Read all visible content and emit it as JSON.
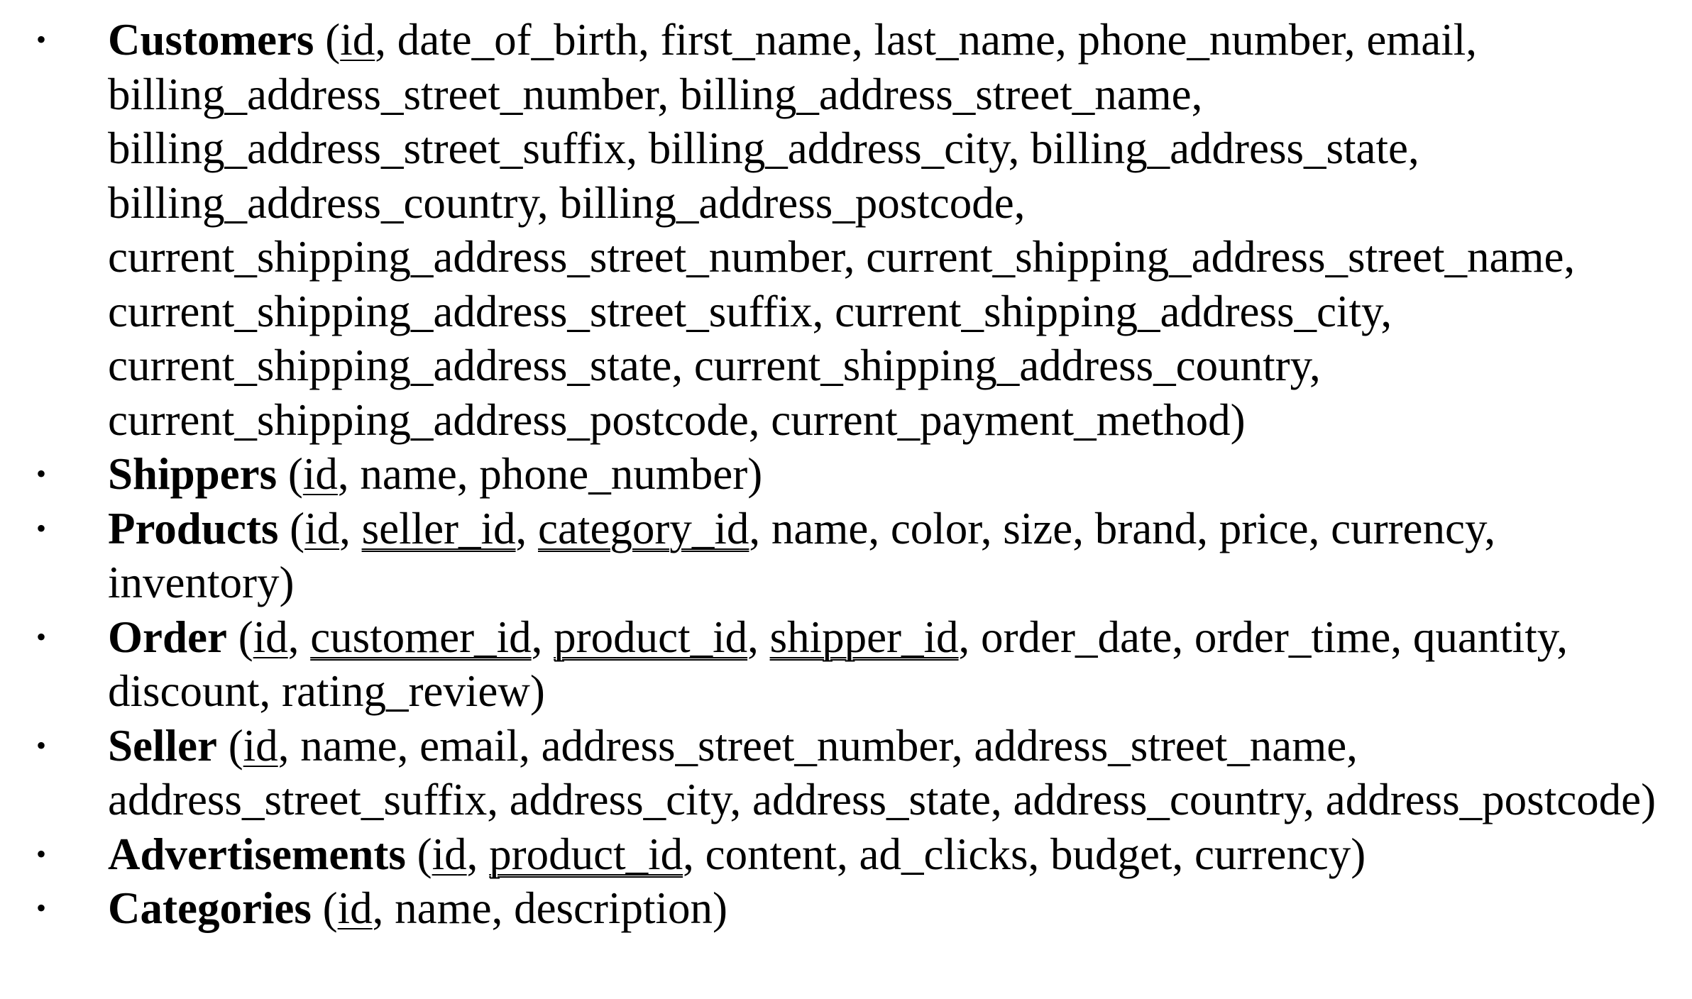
{
  "bullet": "•",
  "tables": [
    {
      "name": "Customers",
      "fields": [
        {
          "label": "id",
          "key": "pk"
        },
        {
          "label": "date_of_birth",
          "key": ""
        },
        {
          "label": "first_name",
          "key": ""
        },
        {
          "label": "last_name",
          "key": ""
        },
        {
          "label": "phone_number",
          "key": ""
        },
        {
          "label": "email",
          "key": ""
        },
        {
          "label": "billing_address_street_number",
          "key": ""
        },
        {
          "label": "billing_address_street_name",
          "key": ""
        },
        {
          "label": "billing_address_street_suffix",
          "key": ""
        },
        {
          "label": "billing_address_city",
          "key": ""
        },
        {
          "label": "billing_address_state",
          "key": ""
        },
        {
          "label": "billing_address_country",
          "key": ""
        },
        {
          "label": "billing_address_postcode",
          "key": ""
        },
        {
          "label": "current_shipping_address_street_number",
          "key": ""
        },
        {
          "label": "current_shipping_address_street_name",
          "key": ""
        },
        {
          "label": "current_shipping_address_street_suffix",
          "key": ""
        },
        {
          "label": "current_shipping_address_city",
          "key": ""
        },
        {
          "label": "current_shipping_address_state",
          "key": ""
        },
        {
          "label": "current_shipping_address_country",
          "key": ""
        },
        {
          "label": "current_shipping_address_postcode",
          "key": ""
        },
        {
          "label": "current_payment_method",
          "key": ""
        }
      ]
    },
    {
      "name": "Shippers",
      "fields": [
        {
          "label": "id",
          "key": "pk"
        },
        {
          "label": "name",
          "key": ""
        },
        {
          "label": "phone_number",
          "key": ""
        }
      ]
    },
    {
      "name": "Products",
      "fields": [
        {
          "label": "id",
          "key": "pk"
        },
        {
          "label": "seller_id",
          "key": "fk"
        },
        {
          "label": "category_id",
          "key": "fk"
        },
        {
          "label": "name",
          "key": ""
        },
        {
          "label": "color",
          "key": ""
        },
        {
          "label": "size",
          "key": ""
        },
        {
          "label": "brand",
          "key": ""
        },
        {
          "label": "price",
          "key": ""
        },
        {
          "label": "currency",
          "key": ""
        },
        {
          "label": "inventory",
          "key": ""
        }
      ]
    },
    {
      "name": "Order",
      "fields": [
        {
          "label": "id",
          "key": "pk"
        },
        {
          "label": "customer_id",
          "key": "fk"
        },
        {
          "label": "product_id",
          "key": "fk"
        },
        {
          "label": "shipper_id",
          "key": "fk"
        },
        {
          "label": "order_date",
          "key": ""
        },
        {
          "label": "order_time",
          "key": ""
        },
        {
          "label": "quantity",
          "key": ""
        },
        {
          "label": "discount",
          "key": ""
        },
        {
          "label": "rating_review",
          "key": ""
        }
      ]
    },
    {
      "name": "Seller",
      "fields": [
        {
          "label": "id",
          "key": "pk"
        },
        {
          "label": "name",
          "key": ""
        },
        {
          "label": "email",
          "key": ""
        },
        {
          "label": "address_street_number",
          "key": ""
        },
        {
          "label": "address_street_name",
          "key": ""
        },
        {
          "label": "address_street_suffix",
          "key": ""
        },
        {
          "label": "address_city",
          "key": ""
        },
        {
          "label": "address_state",
          "key": ""
        },
        {
          "label": "address_country",
          "key": ""
        },
        {
          "label": "address_postcode",
          "key": ""
        }
      ]
    },
    {
      "name": "Advertisements",
      "fields": [
        {
          "label": "id",
          "key": "pk"
        },
        {
          "label": "product_id",
          "key": "fk"
        },
        {
          "label": "content",
          "key": ""
        },
        {
          "label": "ad_clicks",
          "key": ""
        },
        {
          "label": "budget",
          "key": ""
        },
        {
          "label": "currency",
          "key": ""
        }
      ]
    },
    {
      "name": "Categories",
      "fields": [
        {
          "label": "id",
          "key": "pk"
        },
        {
          "label": "name",
          "key": ""
        },
        {
          "label": "description",
          "key": ""
        }
      ]
    }
  ]
}
